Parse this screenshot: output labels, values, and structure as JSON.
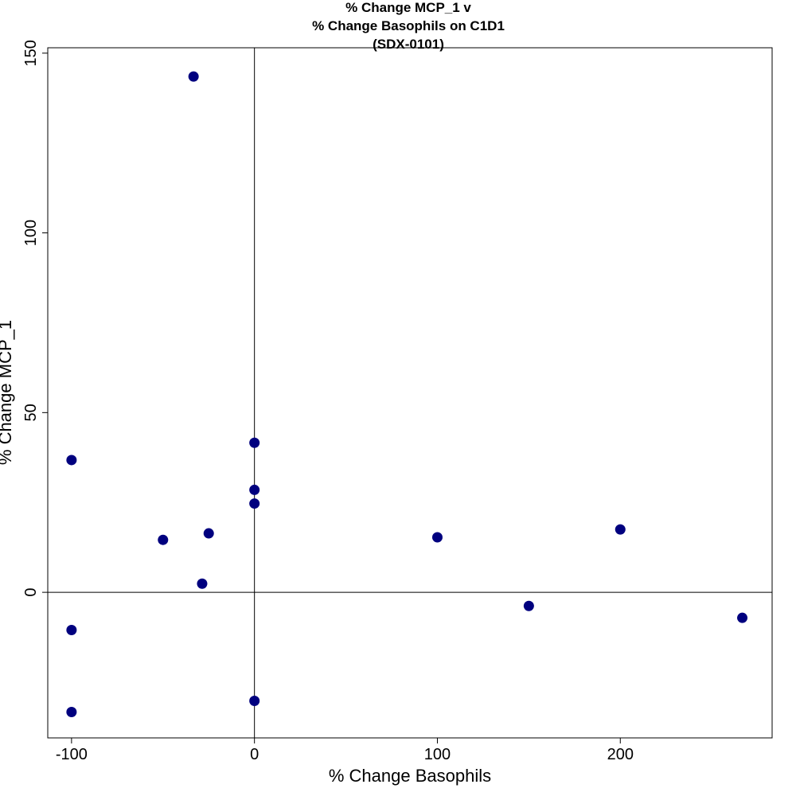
{
  "chart_data": {
    "type": "scatter",
    "title_lines": [
      "% Change MCP_1 v",
      "% Change Basophils on C1D1",
      "(SDX-0101)"
    ],
    "xlabel": "% Change Basophils",
    "ylabel": "% Change MCP_1",
    "xlim": [
      -113,
      283
    ],
    "ylim": [
      -40.5,
      151.5
    ],
    "xticks": [
      -100,
      0,
      100,
      200
    ],
    "yticks": [
      0,
      50,
      100,
      150
    ],
    "x_tick_labels": [
      "-100",
      "0",
      "100",
      "200"
    ],
    "y_tick_labels": [
      "0",
      "50",
      "100",
      "150"
    ],
    "reference_lines": {
      "x": 0,
      "y": 0
    },
    "grid": false,
    "marker_color": "#00007f",
    "points": [
      {
        "x": -33.3,
        "y": 143.5
      },
      {
        "x": -100,
        "y": 36.8
      },
      {
        "x": -100,
        "y": -10.5
      },
      {
        "x": -100,
        "y": -33.3
      },
      {
        "x": -50,
        "y": 14.6
      },
      {
        "x": -25,
        "y": 16.4
      },
      {
        "x": -28.6,
        "y": 2.4
      },
      {
        "x": 0,
        "y": 41.6
      },
      {
        "x": 0,
        "y": 28.5
      },
      {
        "x": 0,
        "y": 24.7
      },
      {
        "x": 0,
        "y": -30.2
      },
      {
        "x": 100,
        "y": 15.3
      },
      {
        "x": 150,
        "y": -3.8
      },
      {
        "x": 200,
        "y": 17.5
      },
      {
        "x": 266.7,
        "y": -7.1
      }
    ]
  }
}
